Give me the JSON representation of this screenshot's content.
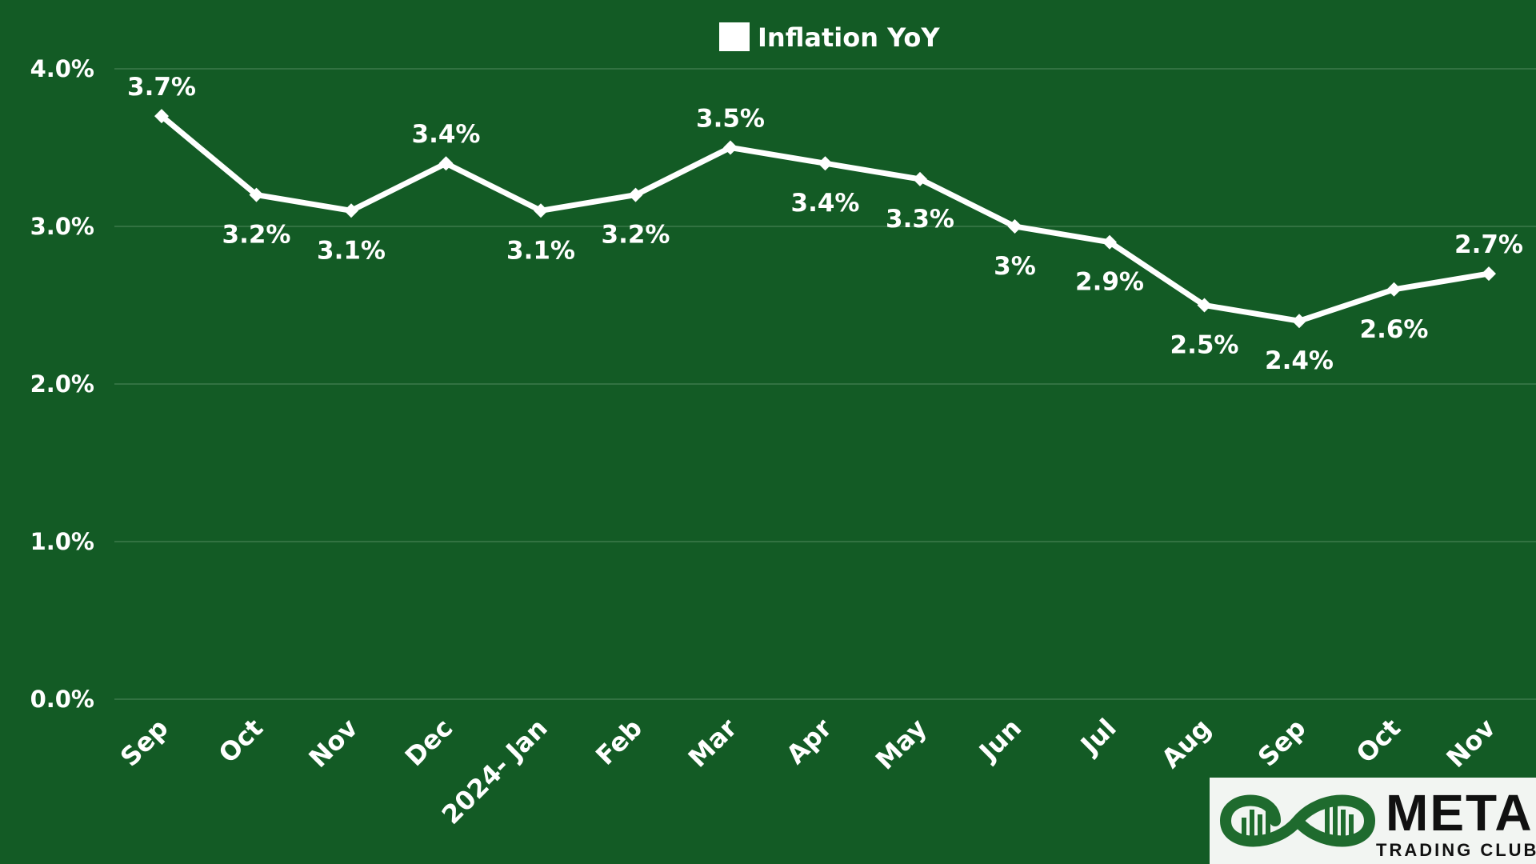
{
  "chart_data": {
    "type": "line",
    "categories": [
      "Sep",
      "Oct",
      "Nov",
      "Dec",
      "2024- Jan",
      "Feb",
      "Mar",
      "Apr",
      "May",
      "Jun",
      "Jul",
      "Aug",
      "Sep",
      "Oct",
      "Nov"
    ],
    "series": [
      {
        "name": "Inflation YoY",
        "values": [
          3.7,
          3.2,
          3.1,
          3.4,
          3.1,
          3.2,
          3.5,
          3.4,
          3.3,
          3.0,
          2.9,
          2.5,
          2.4,
          2.6,
          2.7
        ],
        "labels": [
          "3.7%",
          "3.2%",
          "3.1%",
          "3.4%",
          "3.1%",
          "3.2%",
          "3.5%",
          "3.4%",
          "3.3%",
          "3%",
          "2.9%",
          "2.5%",
          "2.4%",
          "2.6%",
          "2.7%"
        ],
        "label_position": [
          "above",
          "below",
          "below",
          "above",
          "below",
          "below",
          "above",
          "below",
          "below",
          "below",
          "below",
          "below",
          "below",
          "below",
          "above"
        ],
        "color": "#ffffff"
      }
    ],
    "yticks": [
      0,
      1,
      2,
      3,
      4
    ],
    "ytick_labels": [
      "0.0%",
      "1.0%",
      "2.0%",
      "3.0%",
      "4.0%"
    ],
    "ylim": [
      0,
      4
    ],
    "title": "",
    "xlabel": "",
    "ylabel": "",
    "grid": "horizontal",
    "legend_position": "top-center",
    "background_color": "#135b25",
    "gridline_color": "#3c7a4b"
  },
  "logo": {
    "title": "META",
    "subtitle": "TRADING CLUB",
    "accent_color": "#1f6b2e"
  }
}
